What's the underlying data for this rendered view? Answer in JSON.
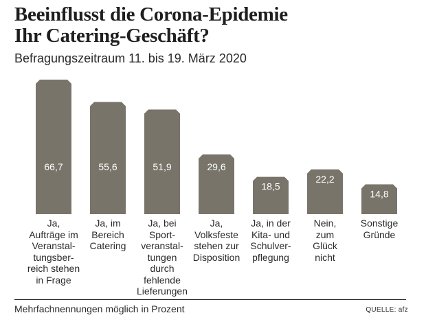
{
  "title_line1": "Beeinflusst die Corona-Epidemie",
  "title_line2": "Ihr Catering-Geschäft?",
  "subtitle": "Befragungszeitraum 11. bis 19. März 2020",
  "footnote": "Mehrfachnennungen möglich in Prozent",
  "source": "QUELLE: afz",
  "colors": {
    "bar": "#78746a",
    "bar_label": "#ffffff",
    "text": "#1e1e1e"
  },
  "chart_data": {
    "type": "bar",
    "title": "Beeinflusst die Corona-Epidemie Ihr Catering-Geschäft?",
    "subtitle": "Befragungszeitraum 11. bis 19. März 2020",
    "ylim": [
      0,
      66.7
    ],
    "categories": [
      [
        "Ja,",
        "Aufträge im",
        "Veranstal-",
        "tungsber-",
        "reich stehen",
        "in Frage"
      ],
      [
        "Ja, im",
        "Bereich",
        "Catering"
      ],
      [
        "Ja, bei",
        "Sport-",
        "veranstal-",
        "tungen",
        "durch",
        "fehlende",
        "Lieferungen"
      ],
      [
        "Ja,",
        "Volksfeste",
        "stehen zur",
        "Disposition"
      ],
      [
        "Ja, in der",
        "Kita- und",
        "Schulver-",
        "pflegung"
      ],
      [
        "Nein,",
        "zum",
        "Glück",
        "nicht"
      ],
      [
        "Sonstige",
        "Gründe"
      ]
    ],
    "values": [
      66.7,
      55.6,
      51.9,
      29.6,
      18.5,
      22.2,
      14.8
    ],
    "value_labels": [
      "66,7",
      "55,6",
      "51,9",
      "29,6",
      "18,5",
      "22,2",
      "14,8"
    ]
  }
}
